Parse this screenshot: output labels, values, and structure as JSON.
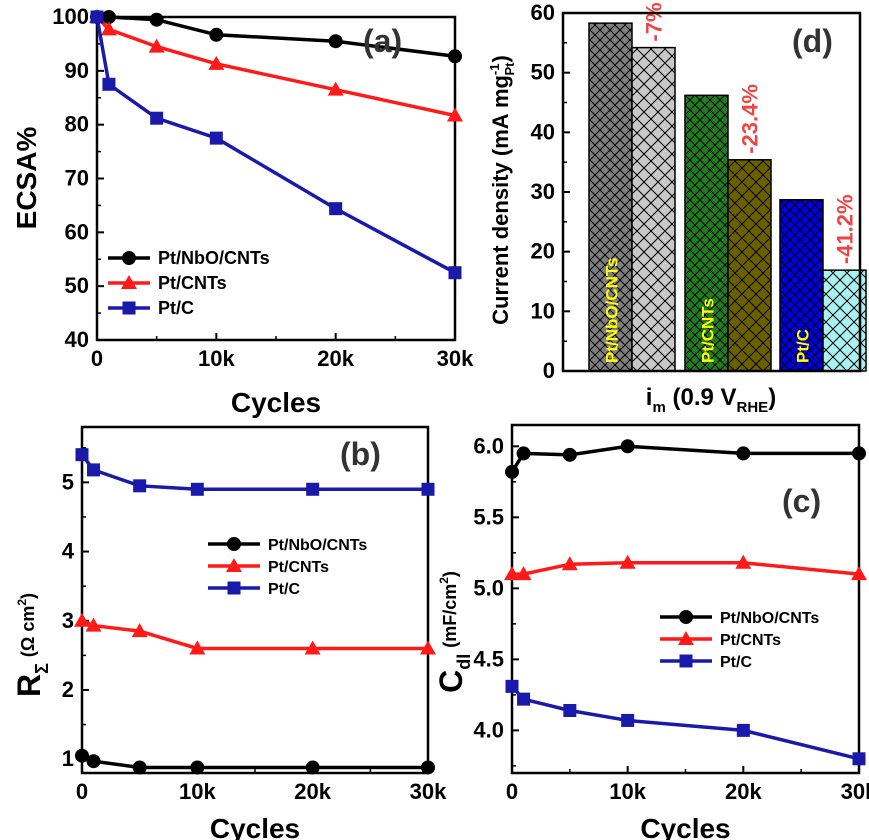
{
  "colors": {
    "black_series": "#000000",
    "red_series": "#ff1a1a",
    "blue_series": "#1a1aaa",
    "drop_label": "#ee4444",
    "bar_label": "#ffff00"
  },
  "chart_data": [
    {
      "panel": "(a)",
      "type": "line",
      "xlabel": "Cycles",
      "ylabel": "ECSA%",
      "xlim": [
        0,
        30000
      ],
      "ylim": [
        40,
        100
      ],
      "x_ticks": [
        "0",
        "10k",
        "20k",
        "30k"
      ],
      "y_ticks": [
        "40",
        "50",
        "60",
        "70",
        "80",
        "90",
        "100"
      ],
      "legend_position": "bottom-left",
      "series": [
        {
          "name": "Pt/NbO/CNTs",
          "marker": "circle",
          "color": "#000000",
          "x": [
            0,
            1000,
            5000,
            10000,
            20000,
            30000
          ],
          "y": [
            100,
            100,
            99.5,
            96.7,
            95.5,
            92.7
          ]
        },
        {
          "name": "Pt/CNTs",
          "marker": "triangle",
          "color": "#ff1a1a",
          "x": [
            0,
            1000,
            5000,
            10000,
            20000,
            30000
          ],
          "y": [
            100,
            97.7,
            94.5,
            91.3,
            86.5,
            81.7
          ]
        },
        {
          "name": "Pt/C",
          "marker": "square",
          "color": "#1a1aaa",
          "x": [
            0,
            1000,
            5000,
            10000,
            20000,
            30000
          ],
          "y": [
            100,
            87.5,
            81.2,
            77.5,
            64.4,
            52.5
          ]
        }
      ]
    },
    {
      "panel": "(d)",
      "type": "bar",
      "xlabel": "i",
      "xlabel_sub": "m",
      "xlabel_rest": " (0.9 V",
      "xlabel_sub2": "RHE",
      "xlabel_close": ")",
      "ylabel": "Current density (mA mg",
      "ylabel_sup": "-1",
      "ylabel_sub": "Pt",
      "ylabel_close": ")",
      "ylim": [
        0,
        60
      ],
      "y_ticks": [
        "0",
        "10",
        "20",
        "30",
        "40",
        "50",
        "60"
      ],
      "groups": [
        {
          "name": "Pt/NbO/CNTs",
          "initial": 58.3,
          "final": 54.2,
          "change": "-7%",
          "initial_color": "#7f7f7f",
          "final_color": "#c8c8c8"
        },
        {
          "name": "Pt/CNTs",
          "initial": 46.2,
          "final": 35.4,
          "change": "-23.4%",
          "initial_color": "#1f7f1f",
          "final_color": "#6b6000"
        },
        {
          "name": "Pt/C",
          "initial": 28.7,
          "final": 16.9,
          "change": "-41.2%",
          "initial_color": "#0000e0",
          "final_color": "#a8f2f2"
        }
      ]
    },
    {
      "panel": "(b)",
      "type": "line",
      "xlabel": "Cycles",
      "ylabel": "R",
      "ylabel_sub": "Σ",
      "ylabel_unit": "(Ω cm",
      "ylabel_unit_sup": "2",
      "ylabel_unit_close": ")",
      "xlim": [
        0,
        30000
      ],
      "ylim": [
        0.8,
        5.8
      ],
      "x_ticks": [
        "0",
        "10k",
        "20k",
        "30k"
      ],
      "y_ticks": [
        "1",
        "2",
        "3",
        "4",
        "5"
      ],
      "legend_position": "center-right",
      "series": [
        {
          "name": "Pt/NbO/CNTs",
          "marker": "circle",
          "color": "#000000",
          "x": [
            0,
            1000,
            5000,
            10000,
            20000,
            30000
          ],
          "y": [
            1.05,
            0.97,
            0.88,
            0.88,
            0.88,
            0.88
          ]
        },
        {
          "name": "Pt/CNTs",
          "marker": "triangle",
          "color": "#ff1a1a",
          "x": [
            0,
            1000,
            5000,
            10000,
            20000,
            30000
          ],
          "y": [
            3.0,
            2.93,
            2.85,
            2.6,
            2.6,
            2.6
          ]
        },
        {
          "name": "Pt/C",
          "marker": "square",
          "color": "#1a1aaa",
          "x": [
            0,
            1000,
            5000,
            10000,
            20000,
            30000
          ],
          "y": [
            5.4,
            5.18,
            4.95,
            4.9,
            4.9,
            4.9
          ]
        }
      ]
    },
    {
      "panel": "(c)",
      "type": "line",
      "xlabel": "Cycles",
      "ylabel": "C",
      "ylabel_sub": "dl",
      "ylabel_unit": "(mF/cm",
      "ylabel_unit_sup": "2",
      "ylabel_unit_close": ")",
      "xlim": [
        0,
        30000
      ],
      "ylim": [
        3.7,
        6.15
      ],
      "x_ticks": [
        "0",
        "10k",
        "20k",
        "30k"
      ],
      "y_ticks": [
        "4.0",
        "4.5",
        "5.0",
        "5.5",
        "6.0"
      ],
      "legend_position": "center-right",
      "series": [
        {
          "name": "Pt/NbO/CNTs",
          "marker": "circle",
          "color": "#000000",
          "x": [
            0,
            1000,
            5000,
            10000,
            20000,
            30000
          ],
          "y": [
            5.82,
            5.95,
            5.94,
            6.0,
            5.95,
            5.95
          ]
        },
        {
          "name": "Pt/CNTs",
          "marker": "triangle",
          "color": "#ff1a1a",
          "x": [
            0,
            1000,
            5000,
            10000,
            20000,
            30000
          ],
          "y": [
            5.1,
            5.1,
            5.17,
            5.18,
            5.18,
            5.1
          ]
        },
        {
          "name": "Pt/C",
          "marker": "square",
          "color": "#1a1aaa",
          "x": [
            0,
            1000,
            5000,
            10000,
            20000,
            30000
          ],
          "y": [
            4.31,
            4.22,
            4.14,
            4.07,
            4.0,
            3.8
          ]
        }
      ]
    }
  ]
}
